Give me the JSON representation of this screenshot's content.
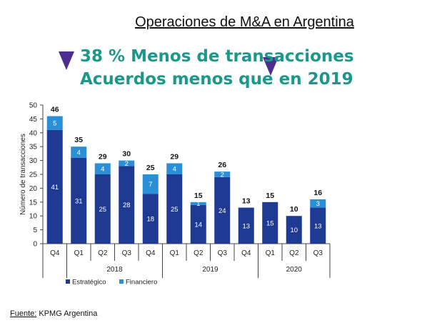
{
  "title": "Operaciones de M&A en Argentina",
  "headline": {
    "line1": "38 % Menos de transacciones",
    "line2": "Acuerdos menos que en 2019",
    "marker_color": "#4b2e8e",
    "text_color": "#19988b"
  },
  "source": {
    "label": "Fuente:",
    "text": "KPMG Argentina"
  },
  "chart_data": {
    "type": "bar",
    "stacked": true,
    "categories": [
      "Q4",
      "Q1",
      "Q2",
      "Q3",
      "Q4",
      "Q1",
      "Q2",
      "Q3",
      "Q4",
      "Q1",
      "Q2",
      "Q3"
    ],
    "groups": [
      {
        "label": "",
        "span": 1
      },
      {
        "label": "2018",
        "span": 4
      },
      {
        "label": "2019",
        "span": 4
      },
      {
        "label": "2020",
        "span": 3
      }
    ],
    "series": [
      {
        "name": "Estratégico",
        "color": "#1f3a93",
        "values": [
          41,
          31,
          25,
          28,
          18,
          25,
          14,
          24,
          13,
          15,
          10,
          13
        ]
      },
      {
        "name": "Financiero",
        "color": "#2a8fd6",
        "values": [
          5,
          4,
          4,
          2,
          7,
          4,
          1,
          2,
          0,
          0,
          0,
          3
        ]
      }
    ],
    "totals": [
      46,
      35,
      29,
      30,
      25,
      29,
      15,
      26,
      13,
      15,
      10,
      16
    ],
    "ylabel": "Número de transacciones",
    "xlabel": "",
    "ylim": [
      0,
      50
    ],
    "yticks": [
      0,
      5,
      10,
      15,
      20,
      25,
      30,
      35,
      40,
      45,
      50
    ],
    "grid": false,
    "legend": "bottom-left"
  }
}
